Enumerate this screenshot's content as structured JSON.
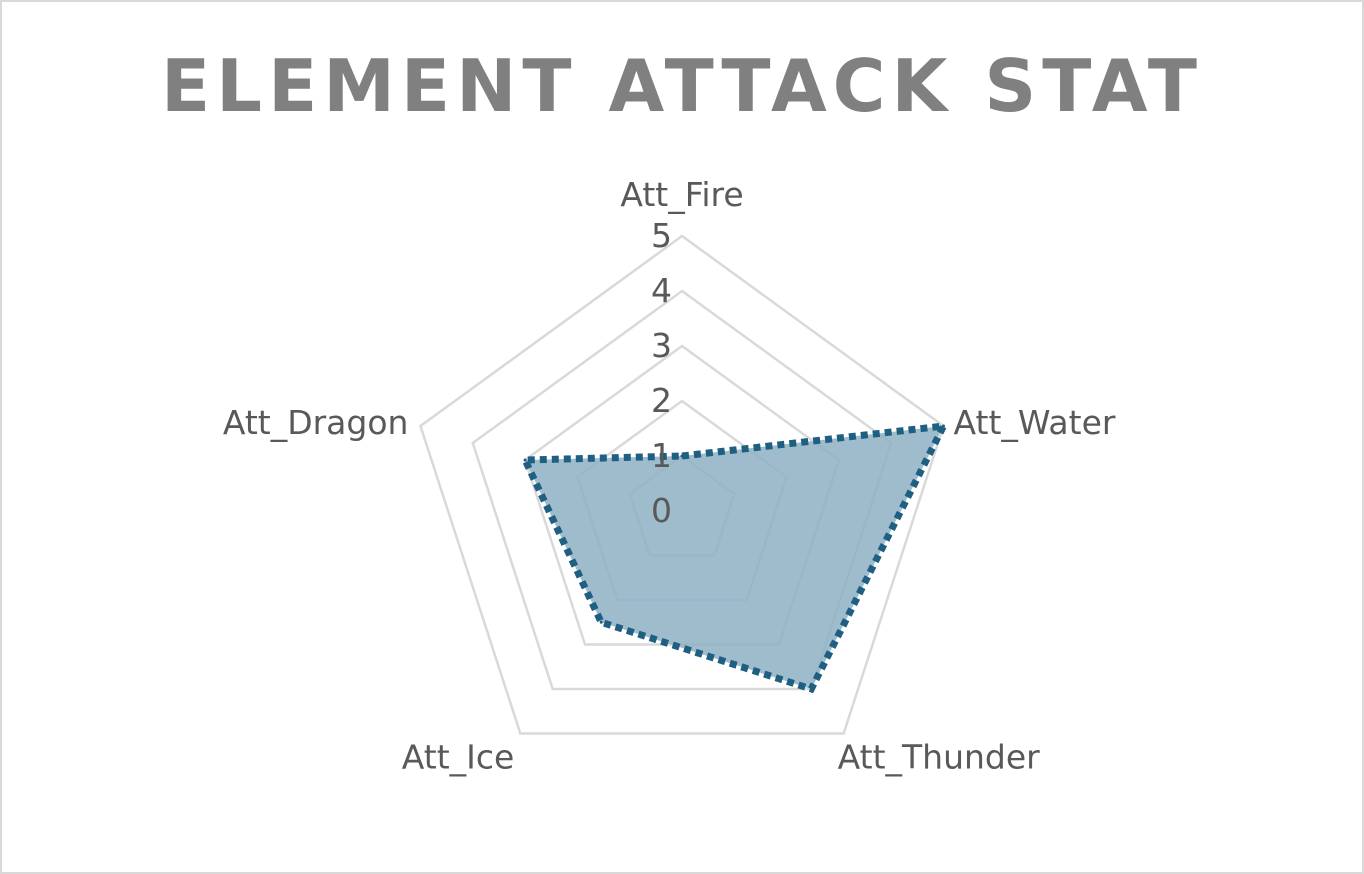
{
  "chart_data": {
    "type": "radar",
    "title": "ELEMENT ATTACK STAT",
    "categories": [
      "Att_Fire",
      "Att_Water",
      "Att_Thunder",
      "Att_Ice",
      "Att_Dragon"
    ],
    "series": [
      {
        "values": [
          1,
          5,
          4,
          2.5,
          3
        ]
      }
    ],
    "rlim": [
      0,
      5
    ],
    "ticks": [
      "0",
      "1",
      "2",
      "3",
      "4",
      "5"
    ],
    "legend": "none",
    "colors": {
      "line": "#1f5f82",
      "fill": "#8eb0c4",
      "grid": "#d9d9d9"
    }
  }
}
